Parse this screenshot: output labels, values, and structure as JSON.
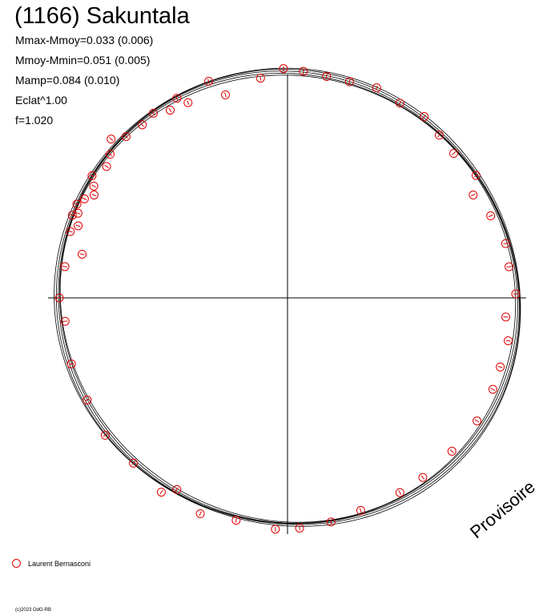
{
  "title": "(1166) Sakuntala",
  "params": {
    "mmax_mmoy": "Mmax-Mmoy=0.033 (0.006)",
    "mmoy_mmin": "Mmoy-Mmin=0.051 (0.005)",
    "mamp": "Mamp=0.084 (0.010)",
    "eclat": "Eclat^1.00",
    "f": "f=1.020"
  },
  "stamp": "Provisoire",
  "legend": {
    "label": "Laurent Bernasconi",
    "marker_color": "#e00000"
  },
  "copyright": "(c)2023 OdG-RB",
  "chart_data": {
    "type": "scatter",
    "projection": "polar",
    "title": "(1166) Sakuntala",
    "series_name": "Laurent Bernasconi",
    "rotation_fraction": 1.02,
    "radius": {
      "mean": 1.0,
      "model_rms": 0.01
    },
    "fit_curve": {
      "description_harmonics": [
        {
          "k": 1,
          "a": 0.005,
          "phase_deg": 20
        },
        {
          "k": 2,
          "a": 0.018,
          "phase_deg": 60
        },
        {
          "k": 3,
          "a": 0.004,
          "phase_deg": 140
        }
      ],
      "n_curves": 5
    },
    "points": [
      {
        "angle_deg": 1,
        "r": 1.0
      },
      {
        "angle_deg": 8,
        "r": 0.98
      },
      {
        "angle_deg": 14,
        "r": 0.985
      },
      {
        "angle_deg": 22,
        "r": 0.96
      },
      {
        "angle_deg": 29,
        "r": 0.93
      },
      {
        "angle_deg": 33,
        "r": 0.985
      },
      {
        "angle_deg": 41,
        "r": 0.965
      },
      {
        "angle_deg": 47,
        "r": 0.975
      },
      {
        "angle_deg": 53,
        "r": 0.995
      },
      {
        "angle_deg": 60,
        "r": 0.985
      },
      {
        "angle_deg": 67,
        "r": 1.0
      },
      {
        "angle_deg": 74,
        "r": 0.985
      },
      {
        "angle_deg": 80,
        "r": 0.985
      },
      {
        "angle_deg": 86,
        "r": 0.995
      },
      {
        "angle_deg": 91,
        "r": 1.005
      },
      {
        "angle_deg": 97,
        "r": 0.97
      },
      {
        "angle_deg": 107,
        "r": 0.93
      },
      {
        "angle_deg": 110,
        "r": 1.01
      },
      {
        "angle_deg": 117,
        "r": 0.96
      },
      {
        "angle_deg": 119,
        "r": 1.0
      },
      {
        "angle_deg": 122,
        "r": 0.97
      },
      {
        "angle_deg": 126,
        "r": 1.0
      },
      {
        "angle_deg": 130,
        "r": 0.99
      },
      {
        "angle_deg": 135,
        "r": 1.0
      },
      {
        "angle_deg": 138,
        "r": 1.04
      },
      {
        "angle_deg": 141,
        "r": 1.0
      },
      {
        "angle_deg": 144,
        "r": 0.98
      },
      {
        "angle_deg": 148,
        "r": 1.01
      },
      {
        "angle_deg": 150,
        "r": 0.98
      },
      {
        "angle_deg": 152,
        "r": 0.96
      },
      {
        "angle_deg": 154,
        "r": 0.99
      },
      {
        "angle_deg": 156,
        "r": 1.01
      },
      {
        "angle_deg": 158,
        "r": 0.99
      },
      {
        "angle_deg": 159,
        "r": 1.01
      },
      {
        "angle_deg": 161,
        "r": 0.97
      },
      {
        "angle_deg": 163,
        "r": 0.995
      },
      {
        "angle_deg": 168,
        "r": 0.92
      },
      {
        "angle_deg": 172,
        "r": 0.985
      },
      {
        "angle_deg": 180,
        "r": 1.0
      },
      {
        "angle_deg": 186,
        "r": 0.98
      },
      {
        "angle_deg": 197,
        "r": 0.99
      },
      {
        "angle_deg": 207,
        "r": 0.985
      },
      {
        "angle_deg": 217,
        "r": 1.0
      },
      {
        "angle_deg": 227,
        "r": 0.99
      },
      {
        "angle_deg": 237,
        "r": 1.015
      },
      {
        "angle_deg": 240,
        "r": 0.97
      },
      {
        "angle_deg": 248,
        "r": 1.02
      },
      {
        "angle_deg": 257,
        "r": 1.0
      },
      {
        "angle_deg": 267,
        "r": 1.015
      },
      {
        "angle_deg": 273,
        "r": 1.01
      },
      {
        "angle_deg": 281,
        "r": 1.0
      },
      {
        "angle_deg": 289,
        "r": 0.985
      },
      {
        "angle_deg": 300,
        "r": 0.985
      },
      {
        "angle_deg": 307,
        "r": 0.985
      },
      {
        "angle_deg": 317,
        "r": 0.985
      },
      {
        "angle_deg": 327,
        "r": 0.99
      },
      {
        "angle_deg": 336,
        "r": 0.985
      },
      {
        "angle_deg": 342,
        "r": 0.98
      },
      {
        "angle_deg": 349,
        "r": 0.985
      },
      {
        "angle_deg": 355,
        "r": 0.96
      }
    ]
  }
}
